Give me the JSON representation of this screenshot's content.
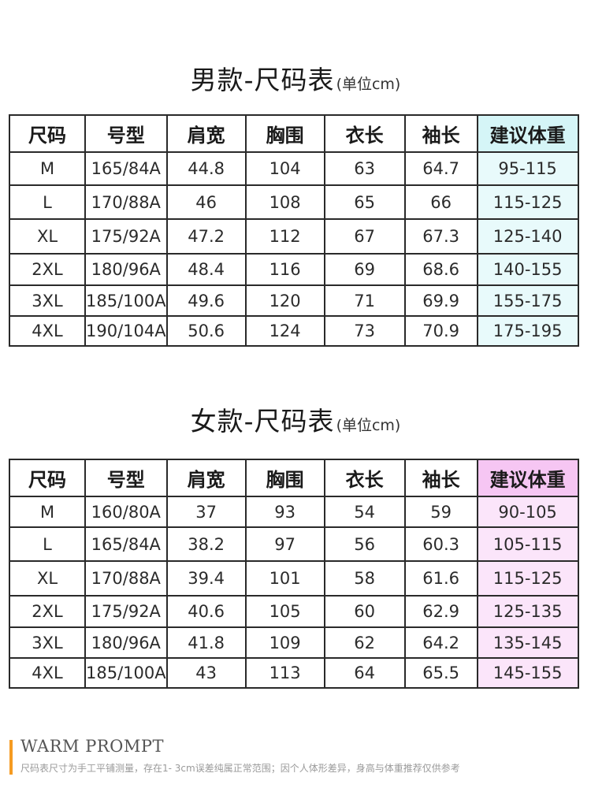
{
  "men": {
    "title": "男款-尺码表",
    "unit": "(单位cm)",
    "headers": [
      "尺码",
      "号型",
      "肩宽",
      "胸围",
      "衣长",
      "袖长",
      "建议体重"
    ],
    "rows": [
      [
        "M",
        "165/84A",
        "44.8",
        "104",
        "63",
        "64.7",
        "95-115"
      ],
      [
        "L",
        "170/88A",
        "46",
        "108",
        "65",
        "66",
        "115-125"
      ],
      [
        "XL",
        "175/92A",
        "47.2",
        "112",
        "67",
        "67.3",
        "125-140"
      ],
      [
        "2XL",
        "180/96A",
        "48.4",
        "116",
        "69",
        "68.6",
        "140-155"
      ],
      [
        "3XL",
        "185/100A",
        "49.6",
        "120",
        "71",
        "69.9",
        "155-175"
      ],
      [
        "4XL",
        "190/104A",
        "50.6",
        "124",
        "73",
        "70.9",
        "175-195"
      ]
    ],
    "highlight_color": "#d5f5f7"
  },
  "women": {
    "title": "女款-尺码表",
    "unit": "(单位cm)",
    "headers": [
      "尺码",
      "号型",
      "肩宽",
      "胸围",
      "衣长",
      "袖长",
      "建议体重"
    ],
    "rows": [
      [
        "M",
        "160/80A",
        "37",
        "93",
        "54",
        "59",
        "90-105"
      ],
      [
        "L",
        "165/84A",
        "38.2",
        "97",
        "56",
        "60.3",
        "105-115"
      ],
      [
        "XL",
        "170/88A",
        "39.4",
        "101",
        "58",
        "61.6",
        "115-125"
      ],
      [
        "2XL",
        "175/92A",
        "40.6",
        "105",
        "60",
        "62.9",
        "125-135"
      ],
      [
        "3XL",
        "180/96A",
        "41.8",
        "109",
        "62",
        "64.2",
        "135-145"
      ],
      [
        "4XL",
        "185/100A",
        "43",
        "113",
        "64",
        "65.5",
        "145-155"
      ]
    ],
    "highlight_color": "#f6c6f3"
  },
  "prompt": {
    "heading": "WARM PROMPT",
    "note": "尺码表尺寸为手工平铺测量，存在1- 3cm误差纯属正常范围；因个人体形差异，身高与体重推荐仅供参考",
    "accent_color": "#f59b22"
  }
}
